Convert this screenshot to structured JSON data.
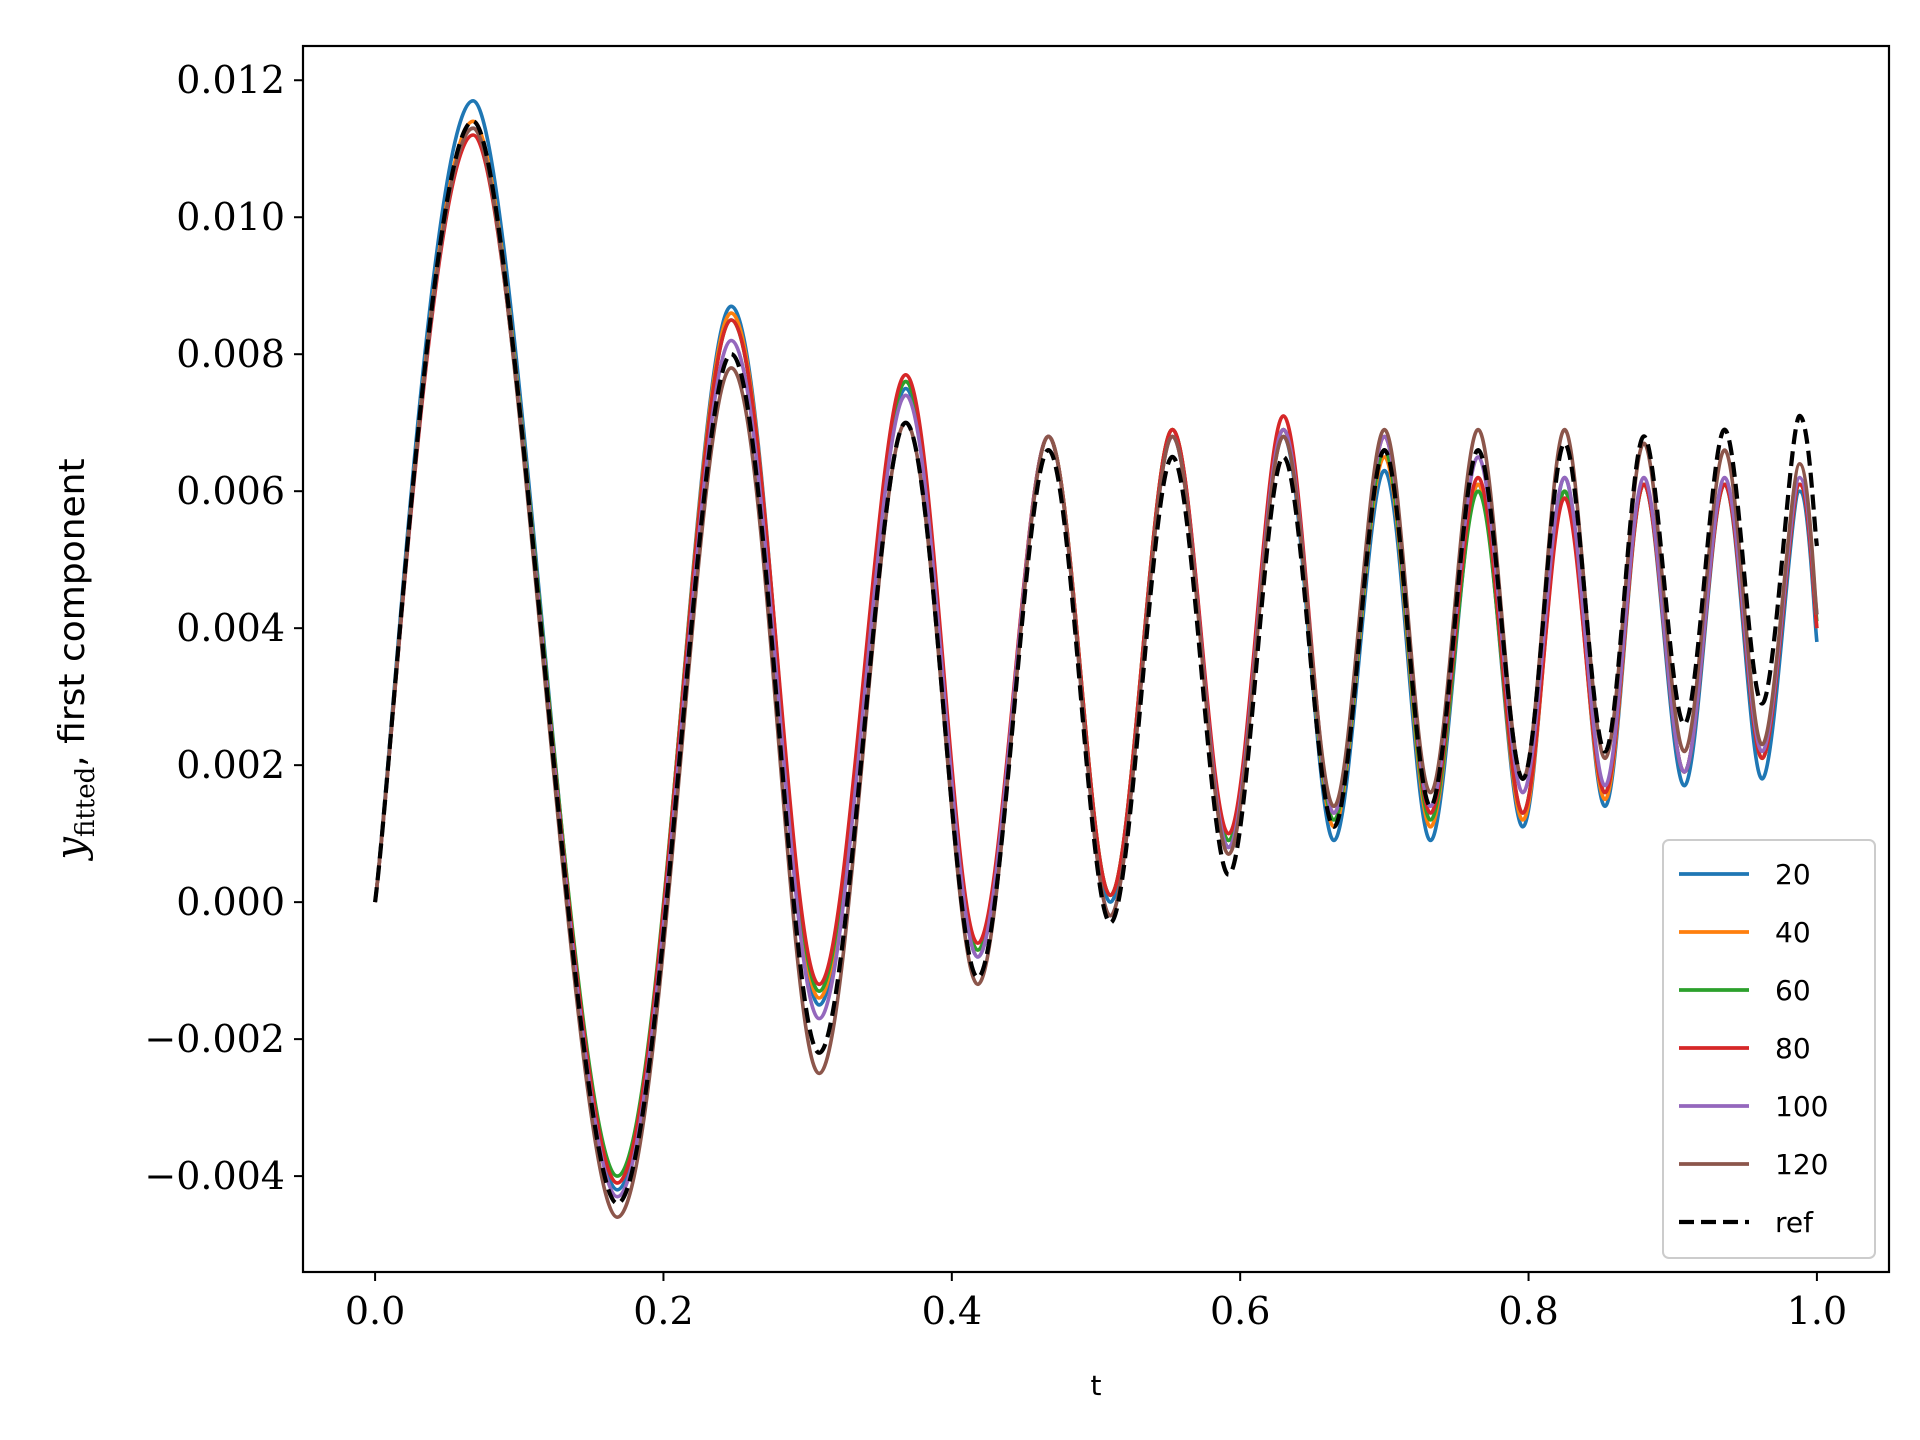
{
  "chart_data": {
    "type": "line",
    "xlabel": "t",
    "ylabel_main": "y",
    "ylabel_sub": "fitted",
    "ylabel_rest": ", first component",
    "xlim": [
      -0.05,
      1.05
    ],
    "ylim": [
      -0.0054,
      0.0125
    ],
    "xticks": [
      0.0,
      0.2,
      0.4,
      0.6,
      0.8,
      1.0
    ],
    "xtick_labels": [
      "0.0",
      "0.2",
      "0.4",
      "0.6",
      "0.8",
      "1.0"
    ],
    "yticks": [
      -0.004,
      -0.002,
      0.0,
      0.002,
      0.004,
      0.006,
      0.008,
      0.01,
      0.012
    ],
    "ytick_labels": [
      "−0.004",
      "−0.002",
      "0.000",
      "0.002",
      "0.004",
      "0.006",
      "0.008",
      "0.010",
      "0.012"
    ],
    "grid": false,
    "legend_position": "lower-right",
    "x": [
      0.0,
      0.068,
      0.168,
      0.247,
      0.308,
      0.368,
      0.418,
      0.467,
      0.51,
      0.553,
      0.592,
      0.63,
      0.665,
      0.7,
      0.732,
      0.765,
      0.796,
      0.825,
      0.853,
      0.88,
      0.908,
      0.936,
      0.962,
      0.988,
      1.0
    ],
    "series": [
      {
        "name": "20",
        "color": "#1f77b4",
        "dashed": false,
        "values": [
          0.0,
          0.0117,
          -0.0042,
          0.0087,
          -0.0015,
          0.0075,
          -0.0008,
          0.0068,
          0.0,
          0.0068,
          0.0008,
          0.0068,
          0.0009,
          0.0063,
          0.0009,
          0.0061,
          0.0011,
          0.0062,
          0.0014,
          0.0061,
          0.0017,
          0.0061,
          0.0018,
          0.006,
          0.0038
        ]
      },
      {
        "name": "40",
        "color": "#ff7f0e",
        "dashed": false,
        "values": [
          0.0,
          0.0114,
          -0.0041,
          0.0086,
          -0.0014,
          0.0076,
          -0.0007,
          0.0068,
          0.0001,
          0.0069,
          0.0009,
          0.0069,
          0.0011,
          0.0065,
          0.0011,
          0.0061,
          0.0012,
          0.006,
          0.0015,
          0.0061,
          0.0019,
          0.0061,
          0.0021,
          0.0061,
          0.004
        ]
      },
      {
        "name": "60",
        "color": "#2ca02c",
        "dashed": false,
        "values": [
          0.0,
          0.0113,
          -0.004,
          0.0085,
          -0.0013,
          0.0076,
          -0.0007,
          0.0068,
          0.0001,
          0.0069,
          0.0009,
          0.0069,
          0.0012,
          0.0066,
          0.0012,
          0.006,
          0.0013,
          0.006,
          0.0016,
          0.0061,
          0.0019,
          0.0061,
          0.0021,
          0.0061,
          0.0041
        ]
      },
      {
        "name": "80",
        "color": "#d62728",
        "dashed": false,
        "values": [
          0.0,
          0.0112,
          -0.0041,
          0.0085,
          -0.0012,
          0.0077,
          -0.0006,
          0.0068,
          0.0001,
          0.0069,
          0.001,
          0.0071,
          0.0013,
          0.0068,
          0.0013,
          0.0062,
          0.0013,
          0.0059,
          0.0016,
          0.0061,
          0.0019,
          0.0061,
          0.0021,
          0.0061,
          0.004
        ]
      },
      {
        "name": "100",
        "color": "#9467bd",
        "dashed": false,
        "values": [
          0.0,
          0.0113,
          -0.0043,
          0.0082,
          -0.0017,
          0.0074,
          -0.0008,
          0.0068,
          -0.0002,
          0.0068,
          0.0008,
          0.0069,
          0.0013,
          0.0068,
          0.0014,
          0.0065,
          0.0016,
          0.0062,
          0.0017,
          0.0062,
          0.0019,
          0.0062,
          0.0022,
          0.0062,
          0.0042
        ]
      },
      {
        "name": "120",
        "color": "#8c564b",
        "dashed": false,
        "values": [
          0.0,
          0.0113,
          -0.0046,
          0.0078,
          -0.0025,
          0.007,
          -0.0012,
          0.0068,
          -0.0002,
          0.0068,
          0.0007,
          0.0068,
          0.0014,
          0.0069,
          0.0016,
          0.0069,
          0.0018,
          0.0069,
          0.0021,
          0.0067,
          0.0022,
          0.0066,
          0.0023,
          0.0064,
          0.0042
        ]
      },
      {
        "name": "ref",
        "color": "#000000",
        "dashed": true,
        "values": [
          0.0,
          0.0114,
          -0.0044,
          0.008,
          -0.0022,
          0.007,
          -0.0011,
          0.0066,
          -0.0003,
          0.0065,
          0.0004,
          0.0065,
          0.0011,
          0.0066,
          0.0014,
          0.0066,
          0.0018,
          0.0067,
          0.0022,
          0.0068,
          0.0026,
          0.0069,
          0.0029,
          0.0071,
          0.0052
        ]
      }
    ]
  }
}
